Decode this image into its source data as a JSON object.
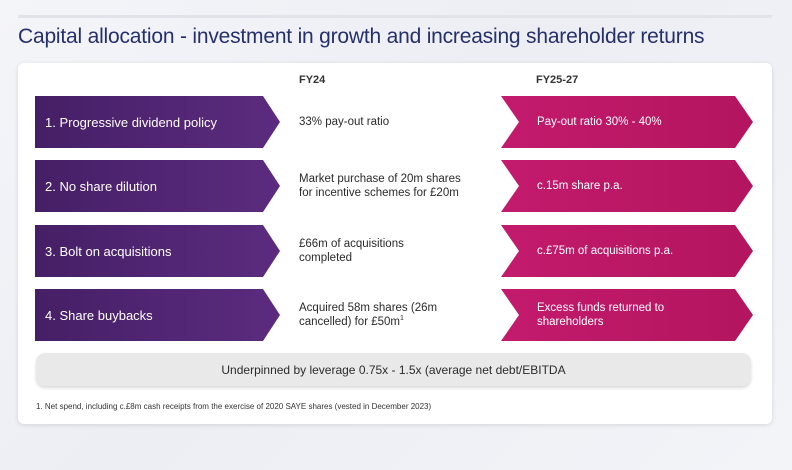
{
  "title": "Capital allocation - investment in growth and increasing shareholder returns",
  "columns": {
    "current": "FY24",
    "future": "FY25-27"
  },
  "rows": [
    {
      "label": "1. Progressive dividend policy",
      "fy24": "33% pay-out ratio",
      "future": "Pay-out ratio 30% - 40%"
    },
    {
      "label": "2. No share dilution",
      "fy24": "Market purchase of 20m shares for incentive schemes for £20m",
      "future": "c.15m share p.a."
    },
    {
      "label": "3. Bolt on acquisitions",
      "fy24": "£66m of acquisitions completed",
      "future": "c.£75m of acquisitions p.a."
    },
    {
      "label": "4. Share buybacks",
      "fy24": "Acquired 58m shares (26m cancelled) for £50m",
      "fy24_sup": "1",
      "future": "Excess funds returned to shareholders"
    }
  ],
  "underpin": "Underpinned by leverage 0.75x - 1.5x (average net debt/EBITDA",
  "footnote": "1. Net spend, including c.£8m cash receipts from the exercise of 2020 SAYE shares (vested in December 2023)",
  "colors": {
    "title": "#25306b",
    "purple": "#5c2b7f",
    "magenta": "#c31a6d"
  }
}
